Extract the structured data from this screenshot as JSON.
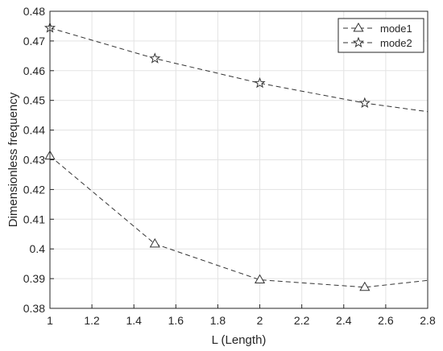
{
  "chart_data": {
    "type": "line",
    "xlabel": "L (Length)",
    "ylabel": "Dimensionless frequency",
    "xlim": [
      1,
      2.8
    ],
    "ylim": [
      0.38,
      0.48
    ],
    "x_ticks": [
      "1",
      "1.2",
      "1.4",
      "1.6",
      "1.8",
      "2",
      "2.2",
      "2.4",
      "2.6",
      "2.8"
    ],
    "y_ticks": [
      "0.38",
      "0.39",
      "0.4",
      "0.41",
      "0.42",
      "0.43",
      "0.44",
      "0.45",
      "0.46",
      "0.47",
      "0.48"
    ],
    "grid": true,
    "legend_position": "top-right",
    "series": [
      {
        "name": "mode1",
        "marker": "triangle",
        "line_style": "dashed",
        "color": "#333333",
        "x": [
          1,
          1.5,
          2,
          2.5,
          2.8
        ],
        "y": [
          0.4313,
          0.4017,
          0.3896,
          0.3871,
          0.3894
        ],
        "marker_x": [
          1,
          1.5,
          2,
          2.5
        ]
      },
      {
        "name": "mode2",
        "marker": "star",
        "line_style": "dashed",
        "color": "#333333",
        "x": [
          1,
          1.5,
          2,
          2.5,
          2.8
        ],
        "y": [
          0.4744,
          0.4641,
          0.4558,
          0.4491,
          0.4462
        ],
        "marker_x": [
          1,
          1.5,
          2,
          2.5
        ]
      }
    ]
  }
}
